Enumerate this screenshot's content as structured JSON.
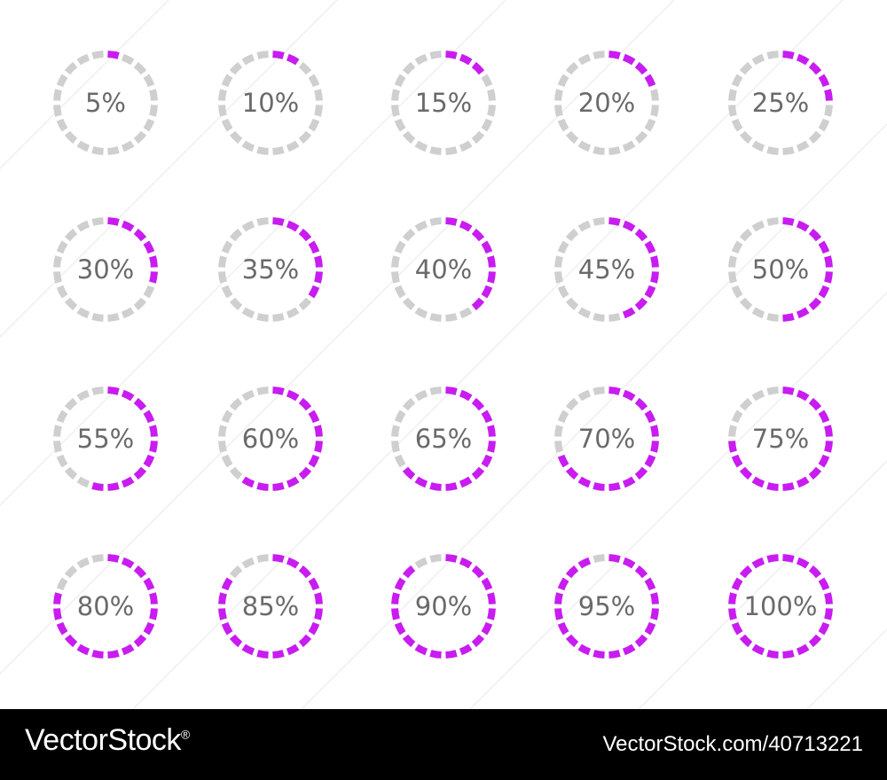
{
  "colors": {
    "filled": "#c81cf0",
    "empty": "#cfcfcf",
    "label": "#6a6a6a",
    "footer_bg": "#000000",
    "footer_text": "#ffffff"
  },
  "segments_per_ring": 20,
  "gauges": [
    {
      "label": "5%",
      "value": 5
    },
    {
      "label": "10%",
      "value": 10
    },
    {
      "label": "15%",
      "value": 15
    },
    {
      "label": "20%",
      "value": 20
    },
    {
      "label": "25%",
      "value": 25
    },
    {
      "label": "30%",
      "value": 30
    },
    {
      "label": "35%",
      "value": 35
    },
    {
      "label": "40%",
      "value": 40
    },
    {
      "label": "45%",
      "value": 45
    },
    {
      "label": "50%",
      "value": 50
    },
    {
      "label": "55%",
      "value": 55
    },
    {
      "label": "60%",
      "value": 60
    },
    {
      "label": "65%",
      "value": 65
    },
    {
      "label": "70%",
      "value": 70
    },
    {
      "label": "75%",
      "value": 75
    },
    {
      "label": "80%",
      "value": 80
    },
    {
      "label": "85%",
      "value": 85
    },
    {
      "label": "90%",
      "value": 90
    },
    {
      "label": "95%",
      "value": 95
    },
    {
      "label": "100%",
      "value": 100
    }
  ],
  "footer": {
    "brand": "VectorStock",
    "brand_mark": "®",
    "image_id": "VectorStock.com/40713221"
  }
}
